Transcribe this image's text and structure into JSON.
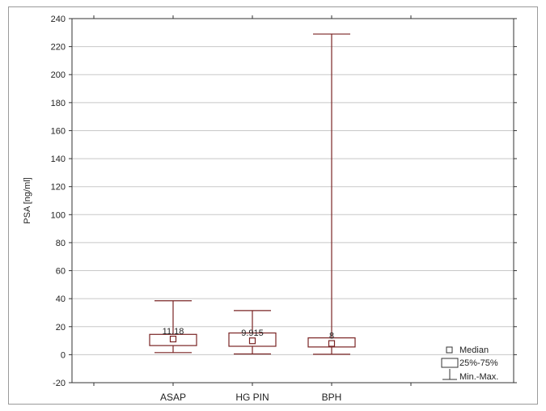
{
  "chart_data": {
    "type": "box",
    "title": "",
    "xlabel": "",
    "ylabel": "PSA [ng/ml]",
    "ylim": [
      -20,
      240
    ],
    "yticks": [
      -20,
      0,
      20,
      40,
      60,
      80,
      100,
      120,
      140,
      160,
      180,
      200,
      220,
      240
    ],
    "grid": true,
    "categories": [
      "ASAP",
      "HG PIN",
      "BPH"
    ],
    "boxes": [
      {
        "category": "ASAP",
        "min": 1.5,
        "q1": 6.5,
        "median": 11.18,
        "q3": 14.5,
        "max": 38.5,
        "median_label": "11.18"
      },
      {
        "category": "HG PIN",
        "min": 0.5,
        "q1": 6.0,
        "median": 9.915,
        "q3": 15.5,
        "max": 31.5,
        "median_label": "9.915"
      },
      {
        "category": "BPH",
        "min": 0.3,
        "q1": 5.5,
        "median": 8.0,
        "q3": 12.0,
        "max": 229,
        "median_label": "8"
      }
    ],
    "legend": {
      "placement": "bottom-right",
      "items": [
        "Median",
        "25%-75%",
        "Min.-Max."
      ]
    },
    "colors": {
      "box": "#7a2424",
      "grid": "#c8c8c8",
      "axis": "#333333"
    }
  }
}
